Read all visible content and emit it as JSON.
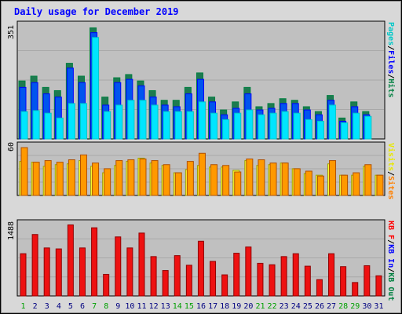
{
  "title": "Daily usage for December 2019",
  "colors": {
    "background": "#ffffff",
    "panel": "#c0c0c0",
    "pages": "#00c8c8",
    "pages_fill": "#00e5ff",
    "files": "#0000ff",
    "files_fill": "#0055ee",
    "hits": "#008040",
    "hits_fill": "#1e7a50",
    "visits": "#e8e800",
    "visits_fill": "#ffff33",
    "sites": "#ff8000",
    "sites_fill": "#ff9900",
    "kb": "#ff0000",
    "kb_fill": "#ee1111",
    "title_color": "#0000ff",
    "weekend_color": "#00a000",
    "weekday_color": "#000080"
  },
  "chart_data": [
    {
      "type": "bar",
      "panel": "hits-files-pages",
      "max_label": "351",
      "ylim": [
        0,
        351
      ],
      "legend": [
        {
          "label": "Pages",
          "color": "#00c8c8"
        },
        {
          "label": "/",
          "color": "#000000"
        },
        {
          "label": "Files",
          "color": "#0000ff"
        },
        {
          "label": "/",
          "color": "#000000"
        },
        {
          "label": "Hits",
          "color": "#008040"
        }
      ],
      "categories": [
        "1",
        "2",
        "3",
        "4",
        "5",
        "6",
        "7",
        "8",
        "9",
        "10",
        "11",
        "12",
        "13",
        "14",
        "15",
        "16",
        "17",
        "18",
        "19",
        "20",
        "21",
        "22",
        "23",
        "24",
        "25",
        "26",
        "27",
        "28",
        "29",
        "30",
        "31"
      ],
      "series": [
        {
          "name": "Hits",
          "values": [
            180,
            195,
            160,
            150,
            235,
            195,
            345,
            130,
            190,
            200,
            180,
            150,
            120,
            120,
            160,
            205,
            130,
            90,
            115,
            160,
            100,
            110,
            125,
            120,
            100,
            85,
            135,
            65,
            115,
            85,
            0
          ]
        },
        {
          "name": "Files",
          "values": [
            160,
            175,
            140,
            130,
            220,
            175,
            330,
            105,
            175,
            185,
            165,
            130,
            105,
            100,
            140,
            185,
            115,
            75,
            95,
            140,
            90,
            95,
            110,
            110,
            90,
            75,
            120,
            55,
            100,
            75,
            0
          ]
        },
        {
          "name": "Pages",
          "values": [
            85,
            88,
            80,
            65,
            110,
            110,
            315,
            85,
            105,
            120,
            120,
            105,
            85,
            85,
            85,
            115,
            80,
            60,
            80,
            90,
            75,
            80,
            85,
            80,
            60,
            55,
            105,
            50,
            80,
            70,
            0
          ]
        }
      ]
    },
    {
      "type": "bar",
      "panel": "visits-sites",
      "max_label": "60",
      "ylim": [
        0,
        60
      ],
      "legend": [
        {
          "label": "Visits",
          "color": "#e8e800"
        },
        {
          "label": "/",
          "color": "#000000"
        },
        {
          "label": "Sites",
          "color": "#ff8000"
        }
      ],
      "categories": [
        "1",
        "2",
        "3",
        "4",
        "5",
        "6",
        "7",
        "8",
        "9",
        "10",
        "11",
        "12",
        "13",
        "14",
        "15",
        "16",
        "17",
        "18",
        "19",
        "20",
        "21",
        "22",
        "23",
        "24",
        "25",
        "26",
        "27",
        "28",
        "29",
        "30",
        "31"
      ],
      "series": [
        {
          "name": "Visits",
          "values": [
            42,
            41,
            36,
            38,
            39,
            43,
            36,
            28,
            37,
            42,
            46,
            40,
            37,
            28,
            32,
            37,
            35,
            35,
            31,
            43,
            37,
            38,
            40,
            33,
            27,
            25,
            39,
            25,
            25,
            36,
            25
          ]
        },
        {
          "name": "Sites",
          "values": [
            59,
            41,
            43,
            41,
            44,
            50,
            40,
            33,
            43,
            44,
            45,
            43,
            38,
            28,
            42,
            52,
            38,
            37,
            29,
            45,
            44,
            40,
            40,
            33,
            30,
            24,
            43,
            25,
            28,
            38,
            25
          ]
        }
      ]
    },
    {
      "type": "bar",
      "panel": "kbytes",
      "max_label": "1488",
      "ylim": [
        0,
        1488
      ],
      "legend": [
        {
          "label": "KB F",
          "color": "#ff0000"
        },
        {
          "label": "/",
          "color": "#000000"
        },
        {
          "label": "KB In",
          "color": "#0000ff"
        },
        {
          "label": "/",
          "color": "#000000"
        },
        {
          "label": "KB Out",
          "color": "#008040"
        }
      ],
      "categories": [
        "1",
        "2",
        "3",
        "4",
        "5",
        "6",
        "7",
        "8",
        "9",
        "10",
        "11",
        "12",
        "13",
        "14",
        "15",
        "16",
        "17",
        "18",
        "19",
        "20",
        "21",
        "22",
        "23",
        "24",
        "25",
        "26",
        "27",
        "28",
        "29",
        "30",
        "31"
      ],
      "series": [
        {
          "name": "KB F",
          "values": [
            880,
            1280,
            1000,
            980,
            1480,
            1000,
            1420,
            450,
            1230,
            1000,
            1310,
            820,
            530,
            840,
            640,
            1140,
            720,
            440,
            890,
            1020,
            680,
            650,
            820,
            880,
            620,
            340,
            880,
            610,
            280,
            630,
            420
          ]
        }
      ]
    }
  ],
  "x_weekend_days": [
    "1",
    "7",
    "8",
    "14",
    "15",
    "21",
    "22",
    "28",
    "29"
  ]
}
